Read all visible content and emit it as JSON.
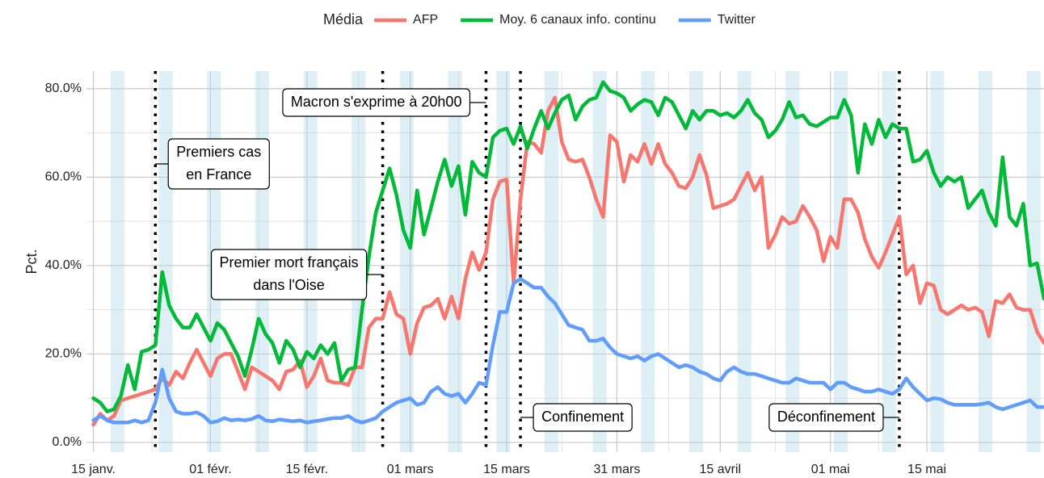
{
  "chart_data": {
    "type": "line",
    "legend_title": "Média",
    "ylabel": "Pct.",
    "legend_position": "top",
    "grid": true,
    "xlim": [
      "01-14",
      "06-01"
    ],
    "xticks": [
      {
        "value": "01-15",
        "label": "15 janv."
      },
      {
        "value": "02-01",
        "label": "01 févr."
      },
      {
        "value": "02-15",
        "label": "15 févr."
      },
      {
        "value": "03-01",
        "label": "01 mars"
      },
      {
        "value": "03-15",
        "label": "15 mars"
      },
      {
        "value": "03-31",
        "label": "31 mars"
      },
      {
        "value": "04-15",
        "label": "15 avril"
      },
      {
        "value": "05-01",
        "label": "01 mai"
      },
      {
        "value": "05-15",
        "label": "15 mai"
      }
    ],
    "ylim": [
      -2.2,
      84
    ],
    "yticks": [
      {
        "value": 0,
        "label": "0.0%"
      },
      {
        "value": 20,
        "label": "20.0%"
      },
      {
        "value": 40,
        "label": "40.0%"
      },
      {
        "value": 60,
        "label": "60.0%"
      },
      {
        "value": 80,
        "label": "80.0%"
      }
    ],
    "x": [
      "01-15",
      "01-16",
      "01-17",
      "01-18",
      "01-19",
      "01-20",
      "01-21",
      "01-22",
      "01-23",
      "01-24",
      "01-25",
      "01-26",
      "01-27",
      "01-28",
      "01-29",
      "01-30",
      "01-31",
      "02-01",
      "02-02",
      "02-03",
      "02-04",
      "02-05",
      "02-06",
      "02-07",
      "02-08",
      "02-09",
      "02-10",
      "02-11",
      "02-12",
      "02-13",
      "02-14",
      "02-15",
      "02-16",
      "02-17",
      "02-18",
      "02-19",
      "02-20",
      "02-21",
      "02-22",
      "02-23",
      "02-24",
      "02-25",
      "02-26",
      "02-27",
      "02-28",
      "02-29",
      "03-01",
      "03-02",
      "03-03",
      "03-04",
      "03-05",
      "03-06",
      "03-07",
      "03-08",
      "03-09",
      "03-10",
      "03-11",
      "03-12",
      "03-13",
      "03-14",
      "03-15",
      "03-16",
      "03-17",
      "03-18",
      "03-19",
      "03-20",
      "03-21",
      "03-22",
      "03-23",
      "03-24",
      "03-25",
      "03-26",
      "03-27",
      "03-28",
      "03-29",
      "03-30",
      "03-31",
      "04-01",
      "04-02",
      "04-03",
      "04-04",
      "04-05",
      "04-06",
      "04-07",
      "04-08",
      "04-09",
      "04-10",
      "04-11",
      "04-12",
      "04-13",
      "04-14",
      "04-15",
      "04-16",
      "04-17",
      "04-18",
      "04-19",
      "04-20",
      "04-21",
      "04-22",
      "04-23",
      "04-24",
      "04-25",
      "04-26",
      "04-27",
      "04-28",
      "04-29",
      "04-30",
      "05-01",
      "05-02",
      "05-03",
      "05-04",
      "05-05",
      "05-06",
      "05-07",
      "05-08",
      "05-09",
      "05-10",
      "05-11",
      "05-12",
      "05-13",
      "05-14",
      "05-15",
      "05-16",
      "05-17",
      "05-18",
      "05-19",
      "05-20",
      "05-21",
      "05-22",
      "05-23",
      "05-24",
      "05-25",
      "05-26",
      "05-27",
      "05-28",
      "05-29",
      "05-30",
      "05-31",
      "06-01"
    ],
    "series": [
      {
        "name": "AFP",
        "color": "#F8766D",
        "values": [
          4,
          6.5,
          5,
          6,
          9.5,
          10,
          10.5,
          11,
          11.5,
          12,
          14.5,
          13,
          16,
          14.5,
          18,
          21,
          18,
          15,
          19,
          20,
          20,
          16,
          12,
          17,
          16,
          15,
          14,
          12,
          16,
          16.5,
          18.5,
          12.5,
          15,
          19,
          14,
          13.5,
          13.5,
          13,
          17,
          17,
          26,
          28,
          28,
          34,
          29,
          28,
          20,
          27,
          30.5,
          31,
          32.5,
          28,
          33,
          28,
          37,
          43,
          39,
          43,
          55,
          59,
          59.5,
          36,
          55,
          68,
          67.5,
          65.5,
          75,
          78,
          68,
          64,
          63.5,
          64,
          60,
          55,
          51,
          69.5,
          68,
          59,
          65,
          63.5,
          67.5,
          63,
          67.5,
          63,
          61,
          58,
          57.5,
          60,
          65,
          60.5,
          53,
          53.5,
          54,
          55,
          58,
          61,
          57,
          60,
          44,
          47,
          51,
          49.5,
          50,
          53.5,
          51,
          48,
          41,
          46.5,
          44,
          55,
          55,
          52,
          46,
          42,
          39.5,
          43,
          47,
          51,
          38,
          40,
          31.5,
          36,
          35.5,
          30,
          29,
          30,
          31,
          30,
          30.5,
          29.5,
          24,
          32,
          31.5,
          33.5,
          30.5,
          30,
          30,
          25,
          22.5
        ]
      },
      {
        "name": "Moy. 6 canaux info. continu",
        "color": "#00BA38",
        "values": [
          10,
          9,
          7,
          7.5,
          10.5,
          17.5,
          12,
          20.5,
          21,
          22,
          38.5,
          31,
          28,
          26,
          26,
          29,
          26,
          23,
          27,
          25.5,
          22.5,
          19.5,
          15,
          21,
          28,
          24.5,
          22.5,
          18,
          23,
          21,
          17,
          20.5,
          19,
          22,
          20,
          22.5,
          14,
          16.5,
          17,
          30,
          42,
          52,
          57,
          62,
          56,
          48,
          44,
          57,
          47,
          53,
          59,
          64,
          58,
          62.5,
          51.5,
          63.5,
          61,
          60,
          69,
          70.5,
          71,
          67.5,
          71.5,
          66.5,
          71,
          75,
          71,
          74.5,
          77.5,
          78.5,
          73,
          76,
          77.5,
          78,
          81.5,
          79.5,
          79,
          78,
          75,
          76.5,
          77.5,
          77,
          74,
          78,
          77,
          74,
          71,
          75,
          73,
          75,
          75,
          74,
          74.5,
          73.5,
          75,
          77.5,
          74.5,
          73,
          69,
          70.5,
          73,
          77,
          73.5,
          74,
          72,
          71.5,
          72.5,
          73.5,
          73.5,
          77.5,
          74,
          61,
          72,
          67.5,
          73,
          69,
          72,
          71,
          71,
          63.5,
          64,
          66,
          61,
          58,
          60,
          59,
          60,
          53,
          55,
          57,
          52,
          49,
          64.5,
          51,
          49,
          54,
          40,
          40.5,
          32.5
        ]
      },
      {
        "name": "Twitter",
        "color": "#619CFF",
        "values": [
          5,
          6,
          5,
          4.5,
          4.5,
          4.5,
          5,
          4.5,
          5,
          9,
          16.5,
          10,
          7,
          6.5,
          6.5,
          6.8,
          6,
          4.5,
          4.8,
          5.5,
          5,
          5.2,
          5,
          5.3,
          6,
          5,
          4.8,
          5.2,
          5,
          4.8,
          5,
          4.5,
          4.8,
          5,
          5.3,
          5.5,
          5.5,
          6,
          5,
          4.5,
          5,
          5.5,
          7,
          8,
          9,
          9.5,
          10,
          8.5,
          9,
          11.5,
          12.5,
          11,
          10.5,
          11,
          9,
          11,
          13.5,
          13,
          22,
          29.5,
          29.5,
          36,
          37,
          36,
          35,
          35,
          33,
          31.5,
          29,
          26.5,
          26,
          25.5,
          23,
          23,
          23.5,
          21.5,
          20,
          19.5,
          19,
          19.5,
          18.5,
          19.5,
          20,
          19,
          18,
          17,
          17.5,
          17,
          16,
          15.5,
          14.5,
          14,
          16,
          17,
          16,
          15.5,
          15.5,
          15,
          14.5,
          14,
          13.5,
          13.5,
          14.5,
          14,
          13.5,
          13.5,
          13.5,
          12,
          13.5,
          13.5,
          12.5,
          12,
          11.5,
          11.5,
          12,
          11.5,
          11,
          12,
          14.5,
          12.5,
          11,
          9.5,
          10,
          9.8,
          9,
          8.5,
          8.5,
          8.5,
          8.5,
          8.7,
          9,
          8,
          7.5,
          8,
          8.5,
          9,
          9.5,
          8,
          8
        ]
      }
    ],
    "annotations": [
      {
        "x": "01-24",
        "label": [
          "Premiers cas",
          "en France"
        ]
      },
      {
        "x": "02-26",
        "label": [
          "Premier mort français",
          "dans l'Oise"
        ]
      },
      {
        "x": "03-12",
        "label": [
          "Macron s'exprime à 20h00"
        ]
      },
      {
        "x": "03-17",
        "label": [
          "Confinement"
        ]
      },
      {
        "x": "05-11",
        "label": [
          "Déconfinement"
        ]
      }
    ]
  }
}
